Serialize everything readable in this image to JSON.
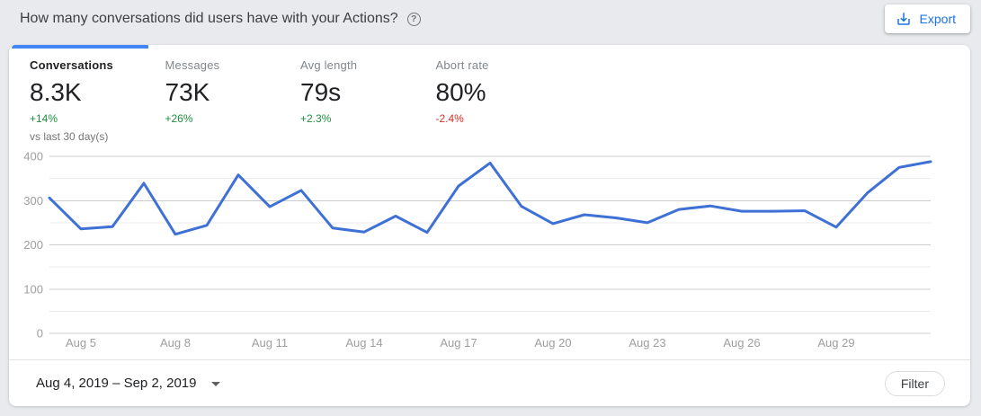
{
  "header": {
    "title": "How many conversations did users have with your Actions?",
    "help_glyph": "?",
    "export_label": "Export"
  },
  "metrics": {
    "comparison_note": "vs last 30 day(s)",
    "tabs": [
      {
        "label": "Conversations",
        "value": "8.3K",
        "delta": "+14%",
        "trend": "up",
        "active": true
      },
      {
        "label": "Messages",
        "value": "73K",
        "delta": "+26%",
        "trend": "up",
        "active": false
      },
      {
        "label": "Avg length",
        "value": "79s",
        "delta": "+2.3%",
        "trend": "up",
        "active": false
      },
      {
        "label": "Abort rate",
        "value": "80%",
        "delta": "-2.4%",
        "trend": "down",
        "active": false
      }
    ]
  },
  "chart_data": {
    "type": "line",
    "series_name": "Conversations",
    "x": [
      "Aug 4",
      "Aug 5",
      "Aug 6",
      "Aug 7",
      "Aug 8",
      "Aug 9",
      "Aug 10",
      "Aug 11",
      "Aug 12",
      "Aug 13",
      "Aug 14",
      "Aug 15",
      "Aug 16",
      "Aug 17",
      "Aug 18",
      "Aug 19",
      "Aug 20",
      "Aug 21",
      "Aug 22",
      "Aug 23",
      "Aug 24",
      "Aug 25",
      "Aug 26",
      "Aug 27",
      "Aug 28",
      "Aug 29",
      "Aug 30",
      "Aug 31",
      "Sep 1"
    ],
    "values": [
      306,
      236,
      241,
      339,
      224,
      244,
      358,
      286,
      323,
      238,
      229,
      265,
      228,
      333,
      385,
      287,
      248,
      268,
      261,
      250,
      280,
      288,
      276,
      276,
      277,
      240,
      318,
      375,
      388
    ],
    "ylim": [
      0,
      400
    ],
    "yticks": [
      0,
      100,
      200,
      300,
      400
    ],
    "minor_grid_step": 50,
    "xticks": [
      "Aug 5",
      "Aug 8",
      "Aug 11",
      "Aug 14",
      "Aug 17",
      "Aug 20",
      "Aug 23",
      "Aug 26",
      "Aug 29"
    ],
    "grid": "horizontal",
    "legend": "none",
    "line_color": "#3e70d6"
  },
  "footer": {
    "date_range": "Aug 4, 2019 – Sep 2, 2019",
    "filter_label": "Filter"
  },
  "colors": {
    "page_background": "#e8eaed",
    "card_background": "#ffffff",
    "accent_tab_blue": "#4285f4",
    "export_blue": "#1a73e8",
    "chart_line_blue": "#3e70d6",
    "positive_green": "#1e8e3e",
    "negative_red": "#d93025",
    "major_gridline": "#cccccc",
    "minor_gridline": "#ebebeb",
    "axis_label_gray": "#9e9e9e"
  }
}
